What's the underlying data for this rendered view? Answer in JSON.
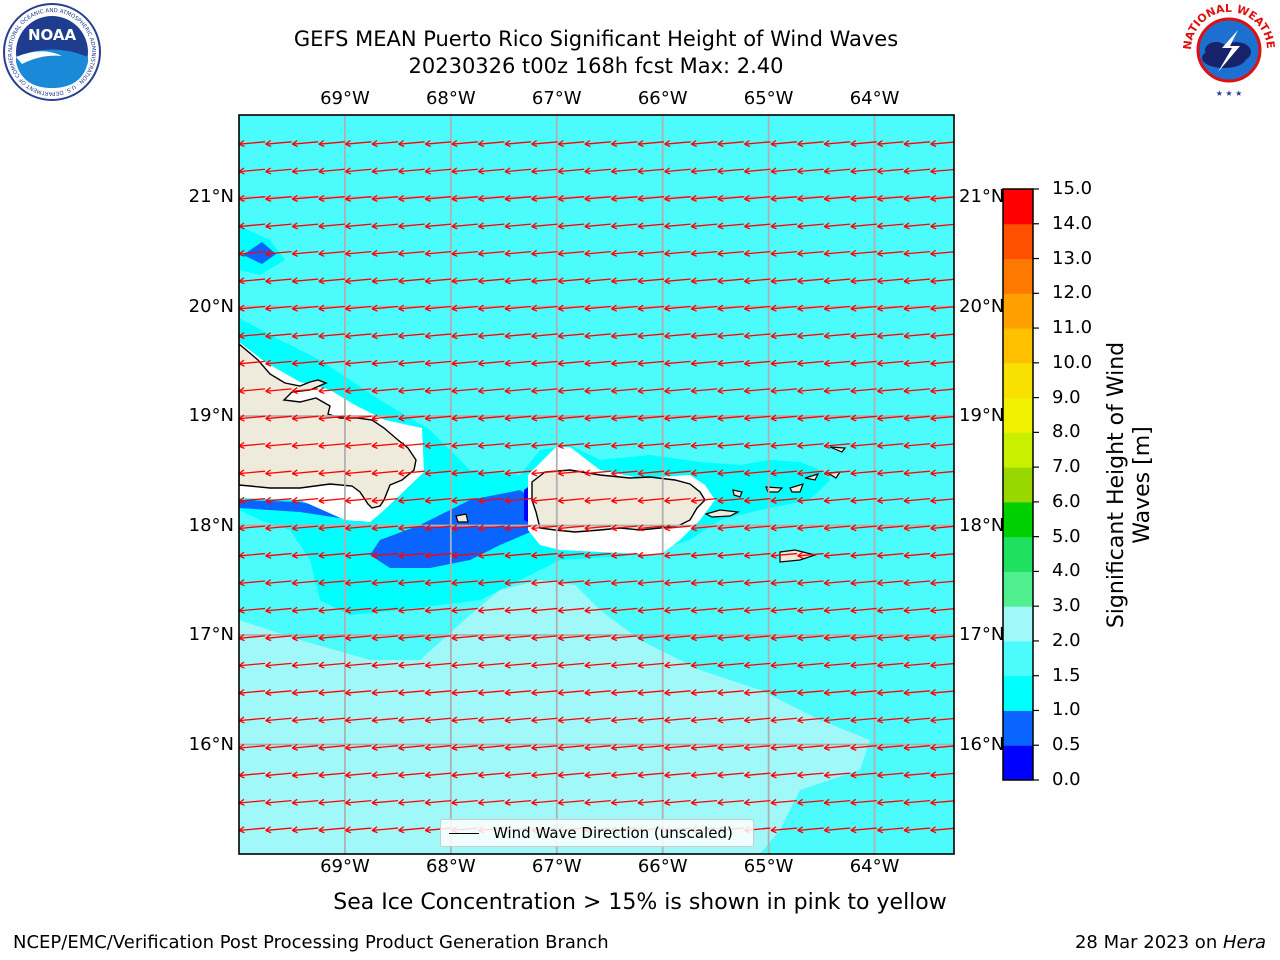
{
  "header": {
    "title_line1": "GEFS MEAN Puerto Rico Significant Height of Wind Waves",
    "title_line2": "20230326 t00z 168h fcst   Max: 2.40"
  },
  "logos": {
    "left": {
      "name": "noaa-logo",
      "text": "NOAA",
      "ring_text": "NATIONAL OCEANIC AND ATMOSPHERIC ADMINISTRATION · U.S. DEPARTMENT OF COMMERCE"
    },
    "right": {
      "name": "nws-logo",
      "ring_text": "NATIONAL WEATHER SERVICE"
    }
  },
  "map": {
    "lon_labels": [
      "69°W",
      "68°W",
      "67°W",
      "66°W",
      "65°W",
      "64°W"
    ],
    "lat_labels": [
      "21°N",
      "20°N",
      "19°N",
      "18°N",
      "17°N",
      "16°N"
    ],
    "lon_values": [
      -69,
      -68,
      -67,
      -66,
      -65,
      -64
    ],
    "lat_values": [
      21,
      20,
      19,
      18,
      17,
      16
    ],
    "extent": {
      "lon_min": -70.0,
      "lon_max": -63.25,
      "lat_min": 15.0,
      "lat_max": 21.75
    },
    "wind_wave_direction": "westward (from east)",
    "gridlines": true
  },
  "colorbar": {
    "label": "Significant Height of Wind Waves [m]",
    "ticks": [
      "15.0",
      "14.0",
      "13.0",
      "12.0",
      "11.0",
      "10.0",
      "9.0",
      "8.0",
      "7.0",
      "6.0",
      "5.0",
      "4.0",
      "3.0",
      "2.0",
      "1.5",
      "1.0",
      "0.5",
      "0.0"
    ],
    "levels": [
      0.0,
      0.5,
      1.0,
      1.5,
      2.0,
      3.0,
      4.0,
      5.0,
      6.0,
      7.0,
      8.0,
      9.0,
      10.0,
      11.0,
      12.0,
      13.0,
      14.0,
      15.0
    ],
    "colors": [
      "#0000ff",
      "#0a64ff",
      "#00ffff",
      "#4cfcfc",
      "#a0f8f8",
      "#50f090",
      "#20e060",
      "#00d000",
      "#98d800",
      "#c8f000",
      "#f0f000",
      "#f8e000",
      "#ffc000",
      "#ffa000",
      "#ff7800",
      "#ff5000",
      "#ff0000"
    ]
  },
  "colors": {
    "land": "#eeeadc",
    "arrow": "#ff0000"
  },
  "legend": {
    "label": "Wind Wave Direction (unscaled)"
  },
  "caption": "Sea Ice Concentration > 15% is shown in pink to yellow",
  "footer": {
    "left": "NCEP/EMC/Verification Post Processing Product Generation Branch",
    "date": "28 Mar 2023 on ",
    "machine": "Hera"
  }
}
